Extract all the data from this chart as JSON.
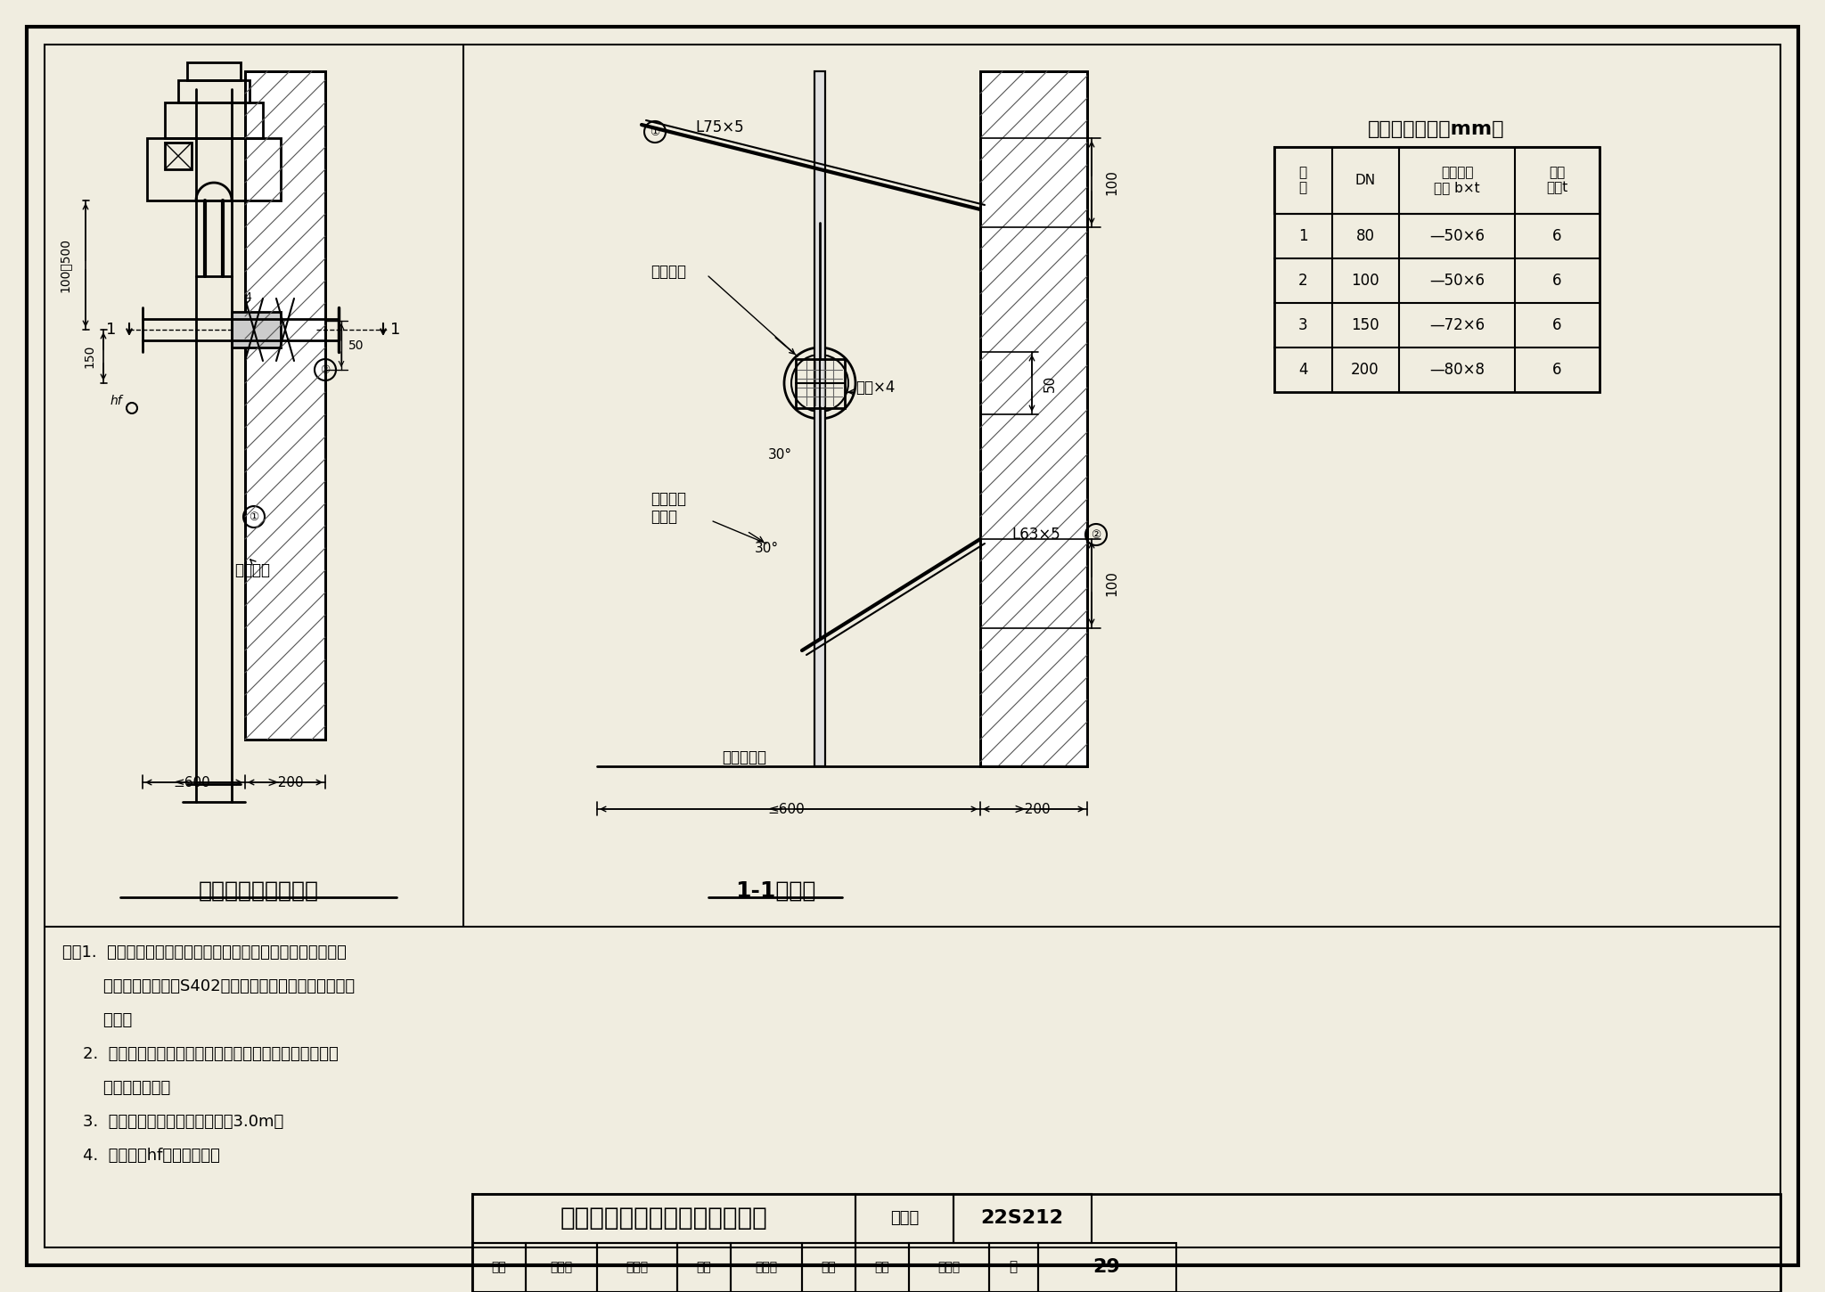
{
  "title": "自动消防炮混凝土墙甲型安装图",
  "figure_number": "22S212",
  "page": "29",
  "background_color": "#f0ede0",
  "border_color": "#000000",
  "left_diagram_title": "混凝土墙甲型安装图",
  "right_diagram_title": "1-1剖面图",
  "table_title": "材料及尺寸表（mm）",
  "table_headers": [
    "序\n号",
    "DN",
    "管夹扁钢\n规格 b×t",
    "挡块\n厚度t"
  ],
  "table_data": [
    [
      "1",
      "80",
      "—50×6",
      "6"
    ],
    [
      "2",
      "100",
      "—50×6",
      "6"
    ],
    [
      "3",
      "150",
      "—72×6",
      "6"
    ],
    [
      "4",
      "200",
      "—80×8",
      "6"
    ]
  ],
  "notes": [
    "注：1.  本图未注明的垂直管夹构配件的详细尺寸、型号及安装，",
    "        参见现行国标图集S402《室内管道支架及吊架》的相关",
    "        要求。",
    "    2.  自动消防炮进水管离墙最小距离应满足自动消防炮安装",
    "        和工作的要求。",
    "    3.  管道支架沿竖向间距不应大于3.0m。",
    "    4.  焊缝高度hf同挡块厚度。"
  ],
  "title_block_labels": [
    "审核",
    "张立成",
    "张玉成",
    "校对",
    "申方宁",
    "审定",
    "设计",
    "姚大鹏"
  ],
  "page_label": "页",
  "atlas_label": "图集号"
}
